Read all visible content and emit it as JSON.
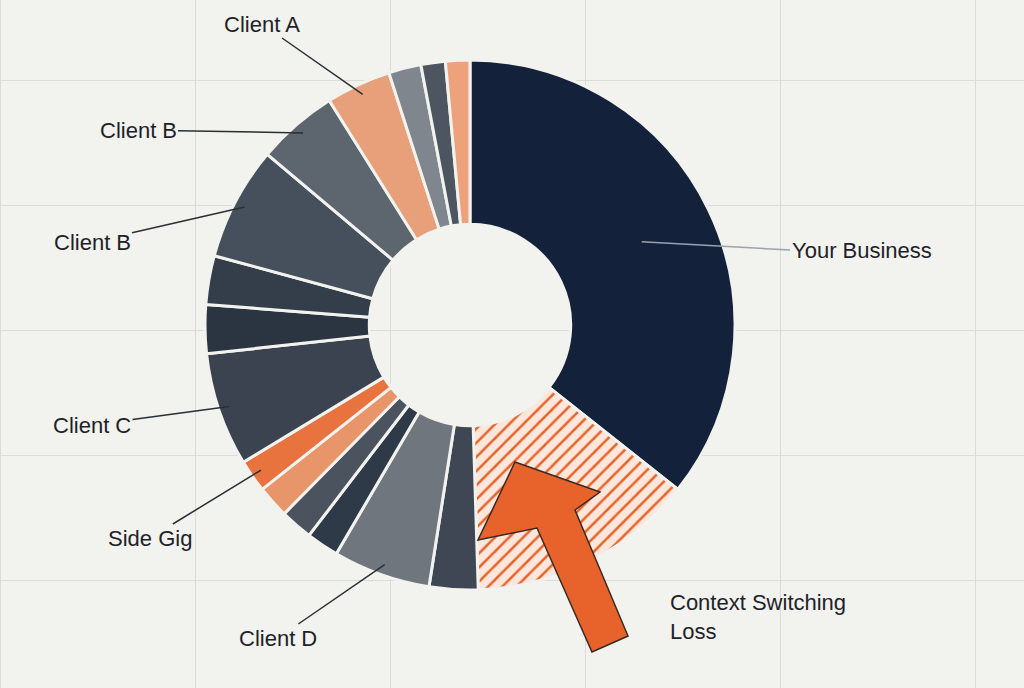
{
  "chart_data": {
    "type": "donut",
    "categories": [
      "Your Business",
      "Context Switching Loss",
      null,
      "Client D",
      null,
      null,
      null,
      "Side Gig",
      "Client C",
      null,
      null,
      "Client B",
      "Client B",
      "Client A",
      null,
      null,
      null
    ],
    "values": [
      36,
      14,
      3,
      6,
      2,
      2,
      2,
      2,
      7,
      3,
      3,
      7,
      5,
      4,
      2,
      1.5,
      1.5
    ],
    "colors": [
      "#13213a",
      "#f6d9c8",
      "#3e4753",
      "#6f767e",
      "#2f3a48",
      "#4a535e",
      "#e8956a",
      "#e8733f",
      "#3a434f",
      "#2b3542",
      "#343e4b",
      "#46505c",
      "#5d656f",
      "#e8a07a",
      "#7f868e",
      "#4d5560",
      "#eda27c"
    ]
  }
}
